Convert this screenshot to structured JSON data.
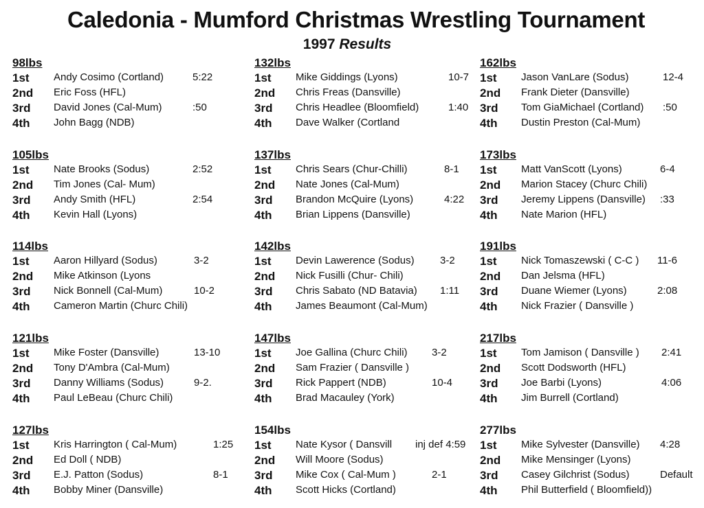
{
  "title": "Caledonia - Mumford  Christmas Wrestling Tournament",
  "subtitle": {
    "year": "1997",
    "label": "Results"
  },
  "columns": [
    [
      {
        "weight": "98lbs",
        "underlined": true,
        "places": [
          {
            "place": "1st",
            "name": "Andy Cosimo (Cortland)",
            "result": "5:22"
          },
          {
            "place": "2nd",
            "name": "Eric Foss  (HFL)",
            "result": ""
          },
          {
            "place": "3rd",
            "name": "David Jones (Cal-Mum)",
            "result": ":50"
          },
          {
            "place": "4th",
            "name": "John Bagg (NDB)",
            "result": ""
          }
        ]
      },
      {
        "weight": "105lbs",
        "underlined": true,
        "places": [
          {
            "place": "1st",
            "name": "Nate Brooks (Sodus)",
            "result": "2:52"
          },
          {
            "place": "2nd",
            "name": "Tim Jones (Cal- Mum)",
            "result": ""
          },
          {
            "place": "3rd",
            "name": "Andy Smith (HFL)",
            "result": "2:54"
          },
          {
            "place": "4th",
            "name": "Kevin Hall (Lyons)",
            "result": ""
          }
        ]
      },
      {
        "weight": "114lbs",
        "underlined": true,
        "places": [
          {
            "place": "1st",
            "name": "Aaron Hillyard (Sodus)",
            "result": "3-2"
          },
          {
            "place": "2nd",
            "name": "Mike Atkinson (Lyons",
            "result": ""
          },
          {
            "place": "3rd",
            "name": "Nick Bonnell (Cal-Mum)",
            "result": "10-2"
          },
          {
            "place": "4th",
            "name": "Cameron Martin (Churc Chili)",
            "result": ""
          }
        ]
      },
      {
        "weight": "121lbs",
        "underlined": true,
        "places": [
          {
            "place": "1st",
            "name": "Mike Foster (Dansville)",
            "result": "13-10"
          },
          {
            "place": "2nd",
            "name": "Tony D'Ambra (Cal-Mum)",
            "result": ""
          },
          {
            "place": "3rd",
            "name": "Danny Williams (Sodus)",
            "result": "9-2."
          },
          {
            "place": "4th",
            "name": "Paul LeBeau (Churc Chili)",
            "result": ""
          }
        ]
      },
      {
        "weight": "127lbs",
        "underlined": true,
        "places": [
          {
            "place": "1st",
            "name": "Kris Harrington ( Cal-Mum)",
            "result": "1:25"
          },
          {
            "place": "2nd",
            "name": "Ed Doll ( NDB)",
            "result": ""
          },
          {
            "place": "3rd",
            "name": "E.J. Patton (Sodus)",
            "result": "8-1"
          },
          {
            "place": "4th",
            "name": "Bobby Miner (Dansville)",
            "result": ""
          }
        ]
      }
    ],
    [
      {
        "weight": "132lbs",
        "underlined": true,
        "places": [
          {
            "place": "1st",
            "name": "Mike Giddings (Lyons)",
            "result": "10-7"
          },
          {
            "place": "2nd",
            "name": "Chris Freas (Dansville)",
            "result": ""
          },
          {
            "place": "3rd",
            "name": "Chris Headlee (Bloomfield)",
            "result": "1:40"
          },
          {
            "place": "4th",
            "name": "Dave Walker (Cortland",
            "result": ""
          }
        ]
      },
      {
        "weight": "137lbs",
        "underlined": true,
        "places": [
          {
            "place": "1st",
            "name": "Chris Sears (Chur-Chilli)",
            "result": "8-1"
          },
          {
            "place": "2nd",
            "name": "Nate Jones (Cal-Mum)",
            "result": ""
          },
          {
            "place": "3rd",
            "name": "Brandon McQuire (Lyons)",
            "result": "4:22"
          },
          {
            "place": "4th",
            "name": "Brian Lippens (Dansville)",
            "result": ""
          }
        ]
      },
      {
        "weight": "142lbs",
        "underlined": true,
        "places": [
          {
            "place": "1st",
            "name": "Devin Lawerence (Sodus)",
            "result": "3-2"
          },
          {
            "place": "2nd",
            "name": "Nick Fusilli (Chur- Chili)",
            "result": ""
          },
          {
            "place": "3rd",
            "name": "Chris Sabato (ND Batavia)",
            "result": "1:11"
          },
          {
            "place": "4th",
            "name": "James Beaumont (Cal-Mum)",
            "result": ""
          }
        ]
      },
      {
        "weight": "147lbs",
        "underlined": true,
        "places": [
          {
            "place": "1st",
            "name": "Joe Gallina (Churc Chili)",
            "result": "3-2"
          },
          {
            "place": "2nd",
            "name": "Sam Frazier ( Dansville )",
            "result": ""
          },
          {
            "place": "3rd",
            "name": "Rick Pappert (NDB)",
            "result": "10-4"
          },
          {
            "place": "4th",
            "name": "Brad Macauley (York)",
            "result": ""
          }
        ]
      },
      {
        "weight": "154lbs",
        "underlined": false,
        "places": [
          {
            "place": "1st",
            "name": "Nate Kysor ( Dansvill",
            "result": "inj def 4:59"
          },
          {
            "place": "2nd",
            "name": "Will Moore  (Sodus)",
            "result": ""
          },
          {
            "place": "3rd",
            "name": "Mike Cox ( Cal-Mum )",
            "result": "2-1"
          },
          {
            "place": "4th",
            "name": "Scott Hicks (Cortland)",
            "result": ""
          }
        ]
      }
    ],
    [
      {
        "weight": "162lbs",
        "underlined": true,
        "places": [
          {
            "place": "1st",
            "name": "Jason VanLare (Sodus)",
            "result": "12-4"
          },
          {
            "place": "2nd",
            "name": "Frank Dieter (Dansville)",
            "result": ""
          },
          {
            "place": "3rd",
            "name": "Tom GiaMichael (Cortland)",
            "result": ":50"
          },
          {
            "place": "4th",
            "name": "Dustin Preston (Cal-Mum)",
            "result": ""
          }
        ]
      },
      {
        "weight": "173lbs",
        "underlined": true,
        "places": [
          {
            "place": "1st",
            "name": "Matt VanScott (Lyons)",
            "result": "6-4"
          },
          {
            "place": "2nd",
            "name": "Marion Stacey (Churc Chili)",
            "result": ""
          },
          {
            "place": "3rd",
            "name": "Jeremy Lippens (Dansville)",
            "result": ":33"
          },
          {
            "place": "4th",
            "name": "Nate Marion (HFL)",
            "result": ""
          }
        ]
      },
      {
        "weight": "191lbs",
        "underlined": true,
        "places": [
          {
            "place": "1st",
            "name": "Nick Tomaszewski ( C-C )",
            "result": "11-6"
          },
          {
            "place": "2nd",
            "name": "Dan Jelsma (HFL)",
            "result": ""
          },
          {
            "place": "3rd",
            "name": "Duane Wiemer (Lyons)",
            "result": "2:08"
          },
          {
            "place": "4th",
            "name": "Nick Frazier ( Dansville )",
            "result": ""
          }
        ]
      },
      {
        "weight": "217lbs",
        "underlined": true,
        "places": [
          {
            "place": "1st",
            "name": "Tom Jamison ( Dansville )",
            "result": "2:41"
          },
          {
            "place": "2nd",
            "name": "Scott Dodsworth (HFL)",
            "result": ""
          },
          {
            "place": "3rd",
            "name": "Joe Barbi  (Lyons)",
            "result": "4:06"
          },
          {
            "place": "4th",
            "name": "Jim Burrell (Cortland)",
            "result": ""
          }
        ]
      },
      {
        "weight": "277lbs",
        "underlined": false,
        "places": [
          {
            "place": "1st",
            "name": "Mike Sylvester (Dansville)",
            "result": "4:28"
          },
          {
            "place": "2nd",
            "name": "Mike Mensinger (Lyons)",
            "result": ""
          },
          {
            "place": "3rd",
            "name": "Casey Gilchrist (Sodus)",
            "result": "Default"
          },
          {
            "place": "4th",
            "name": "Phil Butterfield ( Bloomfield))",
            "result": ""
          }
        ]
      }
    ]
  ]
}
